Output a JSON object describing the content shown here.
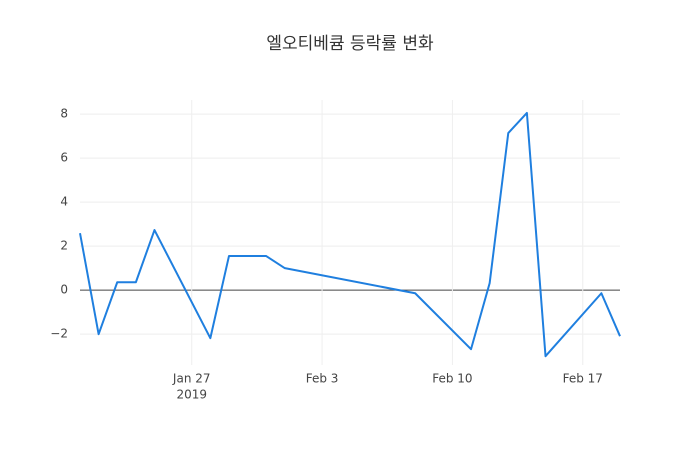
{
  "chart_data": {
    "type": "line",
    "title": "엘오티베큠 등락률 변화",
    "x": [
      "2019-01-21",
      "2019-01-22",
      "2019-01-23",
      "2019-01-24",
      "2019-01-25",
      "2019-01-28",
      "2019-01-29",
      "2019-01-31",
      "2019-02-01",
      "2019-02-08",
      "2019-02-11",
      "2019-02-12",
      "2019-02-13",
      "2019-02-14",
      "2019-02-15",
      "2019-02-18",
      "2019-02-19"
    ],
    "series": [
      {
        "color": "#1f7fdf",
        "values": [
          2.59,
          -2.0,
          0.36,
          0.36,
          2.73,
          -2.18,
          1.55,
          1.55,
          1.0,
          -0.14,
          -2.68,
          0.32,
          7.14,
          8.05,
          -3.0,
          -0.14,
          -2.09
        ]
      }
    ],
    "xlim": [
      "2019-01-21",
      "2019-02-19"
    ],
    "xticks": [
      {
        "value": "2019-01-27",
        "label": "Jan 27"
      },
      {
        "value": "2019-02-03",
        "label": "Feb 3"
      },
      {
        "value": "2019-02-10",
        "label": "Feb 10"
      },
      {
        "value": "2019-02-17",
        "label": "Feb 17"
      }
    ],
    "x_year": "2019",
    "ylim": [
      -3.4,
      8.64
    ],
    "yticks": [
      {
        "value": -2,
        "label": "−2"
      },
      0,
      2,
      4,
      6,
      8
    ],
    "grid": true
  }
}
